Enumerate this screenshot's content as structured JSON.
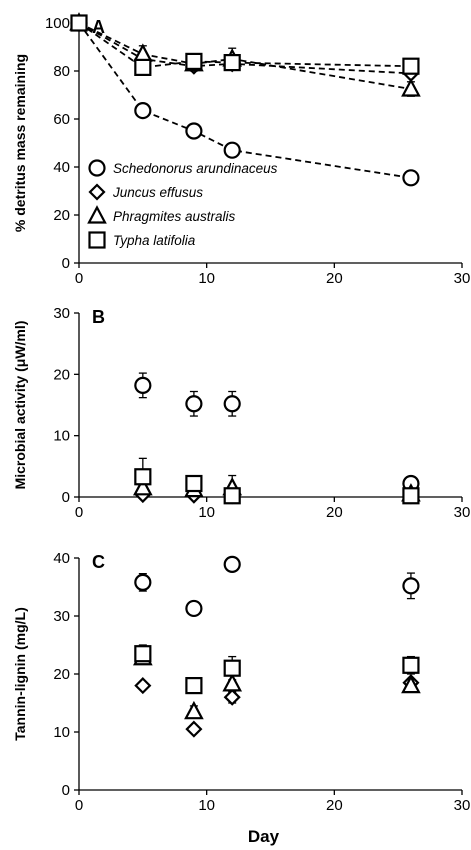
{
  "colors": {
    "axis": "#000000",
    "marker_fill": "#ffffff"
  },
  "figure": {
    "x_axis_label": "Day"
  },
  "chart_data": [
    {
      "type": "line",
      "panel_label": "A",
      "ylabel": "% detritus mass remaining",
      "xlim": [
        0,
        30
      ],
      "ylim": [
        0,
        100
      ],
      "x_ticks": [
        "0",
        "10",
        "20",
        "30"
      ],
      "y_ticks": [
        "0",
        "20",
        "40",
        "60",
        "80",
        "100"
      ],
      "line_style": "dashed",
      "legend": {
        "placement": "lower-left",
        "entries": [
          {
            "marker": "circle",
            "label": "Schedonorus arundinaceus"
          },
          {
            "marker": "diamond",
            "label": "Juncus effusus"
          },
          {
            "marker": "triangle",
            "label": "Phragmites australis"
          },
          {
            "marker": "square",
            "label": "Typha latifolia"
          }
        ]
      },
      "series": [
        {
          "marker": "circle",
          "points": [
            [
              0,
              100
            ],
            [
              5,
              63.5
            ],
            [
              9,
              55
            ],
            [
              12,
              47
            ],
            [
              26,
              35.5
            ]
          ],
          "errors": [
            0,
            1.5,
            1.5,
            1,
            1
          ]
        },
        {
          "marker": "diamond",
          "points": [
            [
              0,
              100
            ],
            [
              5,
              85
            ],
            [
              9,
              82
            ],
            [
              12,
              83
            ],
            [
              26,
              79
            ]
          ],
          "errors": [
            0,
            1.5,
            1.5,
            1.5,
            1
          ]
        },
        {
          "marker": "triangle",
          "points": [
            [
              0,
              100
            ],
            [
              5,
              87
            ],
            [
              9,
              83
            ],
            [
              12,
              85
            ],
            [
              26,
              72.5
            ]
          ],
          "errors": [
            0,
            3.5,
            3,
            4.5,
            3
          ]
        },
        {
          "marker": "square",
          "points": [
            [
              0,
              100
            ],
            [
              5,
              81.5
            ],
            [
              9,
              84
            ],
            [
              12,
              83.5
            ],
            [
              26,
              82
            ]
          ],
          "errors": [
            0,
            2,
            3,
            2.5,
            1.5
          ]
        }
      ]
    },
    {
      "type": "scatter",
      "panel_label": "B",
      "ylabel": "Microbial activity (μW/ml)",
      "xlim": [
        0,
        30
      ],
      "ylim": [
        0,
        30
      ],
      "x_ticks": [
        "0",
        "10",
        "20",
        "30"
      ],
      "y_ticks": [
        "0",
        "10",
        "20",
        "30"
      ],
      "series": [
        {
          "marker": "circle",
          "points": [
            [
              5,
              18.2
            ],
            [
              9,
              15.2
            ],
            [
              12,
              15.2
            ],
            [
              26,
              2.2
            ]
          ],
          "errors": [
            2,
            2,
            2,
            0.3
          ]
        },
        {
          "marker": "diamond",
          "points": [
            [
              5,
              0.4
            ],
            [
              9,
              0.3
            ],
            [
              12,
              0.2
            ],
            [
              26,
              0.2
            ]
          ],
          "errors": [
            0.2,
            0.2,
            0.2,
            0.2
          ]
        },
        {
          "marker": "triangle",
          "points": [
            [
              5,
              1.5
            ],
            [
              9,
              1.2
            ],
            [
              12,
              1.5
            ],
            [
              26,
              0.5
            ]
          ],
          "errors": [
            0.8,
            0.6,
            2,
            0.3
          ]
        },
        {
          "marker": "square",
          "points": [
            [
              5,
              3.3
            ],
            [
              9,
              2.2
            ],
            [
              12,
              0.2
            ],
            [
              26,
              0.2
            ]
          ],
          "errors": [
            3,
            1,
            0.3,
            0.3
          ]
        }
      ]
    },
    {
      "type": "scatter",
      "panel_label": "C",
      "ylabel": "Tannin-lignin (mg/L)",
      "xlabel": "Day",
      "xlim": [
        0,
        30
      ],
      "ylim": [
        0,
        40
      ],
      "x_ticks": [
        "0",
        "10",
        "20",
        "30"
      ],
      "y_ticks": [
        "0",
        "10",
        "20",
        "30",
        "40"
      ],
      "series": [
        {
          "marker": "circle",
          "points": [
            [
              5,
              35.8
            ],
            [
              9,
              31.3
            ],
            [
              12,
              38.9
            ],
            [
              26,
              35.2
            ]
          ],
          "errors": [
            1.5,
            0.8,
            0.8,
            2.2
          ]
        },
        {
          "marker": "diamond",
          "points": [
            [
              5,
              18
            ],
            [
              9,
              10.5
            ],
            [
              12,
              16
            ],
            [
              26,
              18.5
            ]
          ],
          "errors": [
            0.3,
            0.5,
            1,
            0.5
          ]
        },
        {
          "marker": "triangle",
          "points": [
            [
              5,
              22.8
            ],
            [
              9,
              13.5
            ],
            [
              12,
              18.3
            ],
            [
              26,
              18
            ]
          ],
          "errors": [
            1,
            1,
            1.5,
            1
          ]
        },
        {
          "marker": "square",
          "points": [
            [
              5,
              23.5
            ],
            [
              9,
              18
            ],
            [
              12,
              21
            ],
            [
              26,
              21.5
            ]
          ],
          "errors": [
            1.5,
            0.8,
            2,
            1.5
          ]
        }
      ]
    }
  ]
}
